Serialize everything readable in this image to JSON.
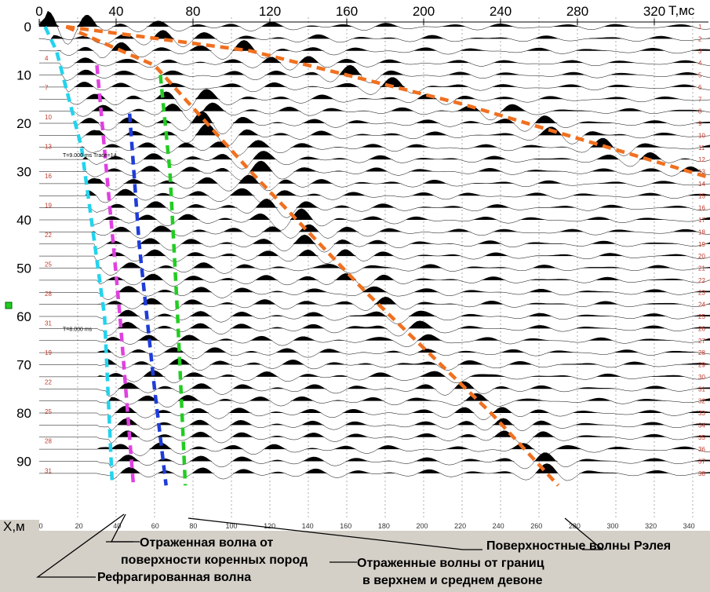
{
  "chart_data": {
    "type": "seismogram",
    "x_axis": {
      "label": "T,мс",
      "ticks": [
        0,
        40,
        80,
        120,
        160,
        200,
        240,
        280,
        320
      ],
      "range": [
        0,
        355
      ]
    },
    "y_axis": {
      "label": "X,м",
      "ticks": [
        0,
        10,
        20,
        30,
        40,
        50,
        60,
        70,
        80,
        90
      ],
      "range": [
        0,
        95
      ]
    },
    "bottom_ticks": [
      0,
      20,
      40,
      60,
      80,
      100,
      120,
      140,
      160,
      180,
      200,
      220,
      240,
      260,
      280,
      300,
      320,
      340
    ],
    "trace_numbers_left": [
      4,
      7,
      10,
      13,
      16,
      19,
      22,
      25,
      28,
      31,
      19,
      22,
      25,
      28,
      31
    ],
    "trace_numbers_right": [
      1,
      2,
      3,
      4,
      5,
      6,
      7,
      8,
      9,
      10,
      11,
      12,
      13,
      14,
      15,
      16,
      17,
      18,
      19,
      20,
      21,
      22,
      23,
      24,
      25,
      26,
      27,
      28,
      29,
      30,
      31,
      32,
      33,
      34,
      35,
      36,
      37,
      38
    ],
    "readouts": [
      "T=9.000 ms  Trace=14",
      "T=8.000 ms"
    ],
    "picks": [
      {
        "name": "refracted",
        "color": "#22d3ee",
        "points": [
          [
            3,
            0
          ],
          [
            9,
            5
          ],
          [
            22,
            25
          ],
          [
            34,
            60
          ],
          [
            38,
            95
          ]
        ]
      },
      {
        "name": "bedrock-reflection",
        "color": "#e040e0",
        "points": [
          [
            30,
            8
          ],
          [
            35,
            30
          ],
          [
            42,
            60
          ],
          [
            49,
            95
          ]
        ]
      },
      {
        "name": "blue",
        "color": "#1e3cd8",
        "points": [
          [
            47,
            18
          ],
          [
            52,
            45
          ],
          [
            60,
            75
          ],
          [
            66,
            95
          ]
        ]
      },
      {
        "name": "green",
        "color": "#22cc22",
        "points": [
          [
            63,
            10
          ],
          [
            68,
            30
          ],
          [
            72,
            60
          ],
          [
            76,
            95
          ]
        ]
      },
      {
        "name": "devonian",
        "color": "#f07020",
        "points": [
          [
            14,
            0
          ],
          [
            60,
            8
          ],
          [
            110,
            30
          ],
          [
            170,
            55
          ],
          [
            235,
            80
          ],
          [
            270,
            95
          ]
        ]
      },
      {
        "name": "rayleigh",
        "color": "#f07020",
        "points": [
          [
            14,
            0
          ],
          [
            110,
            5
          ],
          [
            220,
            16
          ],
          [
            355,
            32
          ]
        ]
      }
    ]
  },
  "captions": {
    "bedrock_line1": "Отраженная волна от",
    "bedrock_line2": "поверхности коренных пород",
    "refracted": "Рефрагированная волна",
    "rayleigh": "Поверхностные волны Рэлея",
    "devon_line1": "Отраженные волны от границ",
    "devon_line2": "в верхнем и среднем девоне"
  }
}
